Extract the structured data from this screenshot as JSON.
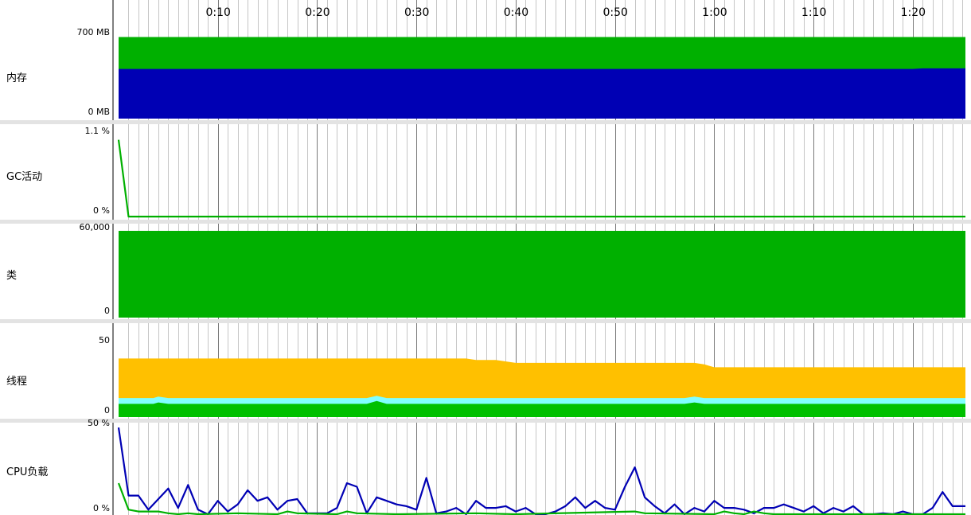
{
  "chart_data": {
    "type": "area",
    "time_axis": {
      "ticks": [
        {
          "t": 10,
          "label": "0:10"
        },
        {
          "t": 20,
          "label": "0:20"
        },
        {
          "t": 30,
          "label": "0:30"
        },
        {
          "t": 40,
          "label": "0:40"
        },
        {
          "t": 50,
          "label": "0:50"
        },
        {
          "t": 60,
          "label": "1:00"
        },
        {
          "t": 70,
          "label": "1:10"
        },
        {
          "t": 80,
          "label": "1:20"
        }
      ],
      "range_seconds": [
        0,
        85.3
      ],
      "minor_grid_seconds": 1
    },
    "panels": [
      {
        "id": "memory",
        "label": "内存",
        "ymax_label": "700 MB",
        "ymin_label": "0 MB",
        "ylim": [
          0,
          700
        ],
        "series": [
          {
            "color": "#00b000",
            "points": [
              [
                0,
                690
              ],
              [
                85.3,
                690
              ]
            ]
          },
          {
            "color": "#0000b4",
            "points": [
              [
                0,
                420
              ],
              [
                80,
                420
              ],
              [
                81,
                425
              ],
              [
                85.3,
                425
              ]
            ]
          }
        ]
      },
      {
        "id": "gc",
        "label": "GC活动",
        "ymax_label": "1.1 %",
        "ymin_label": "0 %",
        "ylim": [
          0,
          1.1
        ],
        "lines": [
          {
            "color": "#00b000",
            "points": [
              [
                0,
                1.03
              ],
              [
                1,
                0.01
              ],
              [
                85.3,
                0.01
              ]
            ]
          }
        ]
      },
      {
        "id": "classes",
        "label": "类",
        "ymax_label": "60,000",
        "ymin_label": "0",
        "ylim": [
          0,
          60000
        ],
        "series": [
          {
            "color": "#00b000",
            "points": [
              [
                0,
                60000
              ],
              [
                85.3,
                60000
              ]
            ]
          }
        ]
      },
      {
        "id": "threads",
        "label": "线程",
        "ymax_label": "50",
        "ymin_label": "0",
        "ylim": [
          0,
          50
        ],
        "series": [
          {
            "color": "#ffc000",
            "points": [
              [
                0,
                40
              ],
              [
                35,
                40
              ],
              [
                36,
                39
              ],
              [
                38,
                39
              ],
              [
                40,
                37
              ],
              [
                58,
                37
              ],
              [
                59,
                36
              ],
              [
                60,
                34
              ],
              [
                85.3,
                34
              ]
            ]
          },
          {
            "color": "#80ffff",
            "points": [
              [
                0,
                13
              ],
              [
                3.5,
                13
              ],
              [
                4,
                14
              ],
              [
                5,
                13
              ],
              [
                25,
                13
              ],
              [
                26,
                14.5
              ],
              [
                27,
                13
              ],
              [
                57,
                13
              ],
              [
                58,
                14
              ],
              [
                59,
                13
              ],
              [
                85.3,
                13
              ]
            ]
          },
          {
            "color": "#00c000",
            "points": [
              [
                0,
                9
              ],
              [
                3.5,
                9
              ],
              [
                4,
                10
              ],
              [
                5,
                9
              ],
              [
                25,
                9
              ],
              [
                26,
                11
              ],
              [
                27,
                9
              ],
              [
                57,
                9
              ],
              [
                58,
                10
              ],
              [
                59,
                9
              ],
              [
                85.3,
                9
              ]
            ]
          }
        ]
      },
      {
        "id": "cpu",
        "label": "CPU负载",
        "ymax_label": "50 %",
        "ymin_label": "0 %",
        "ylim": [
          0,
          50
        ],
        "lines": [
          {
            "color": "#0000b4",
            "points": [
              [
                0,
                49.5
              ],
              [
                1,
                11
              ],
              [
                2,
                11
              ],
              [
                3,
                3
              ],
              [
                4,
                9
              ],
              [
                5,
                15
              ],
              [
                6,
                4
              ],
              [
                7,
                17
              ],
              [
                8,
                3
              ],
              [
                9,
                0
              ],
              [
                10,
                8
              ],
              [
                11,
                2
              ],
              [
                12,
                6
              ],
              [
                13,
                14
              ],
              [
                14,
                8
              ],
              [
                15,
                10
              ],
              [
                16,
                3
              ],
              [
                17,
                8
              ],
              [
                18,
                9
              ],
              [
                19,
                1
              ],
              [
                20,
                1
              ],
              [
                21,
                1
              ],
              [
                22,
                4
              ],
              [
                23,
                18
              ],
              [
                24,
                16
              ],
              [
                25,
                1
              ],
              [
                26,
                10
              ],
              [
                27,
                8
              ],
              [
                28,
                6
              ],
              [
                29,
                5
              ],
              [
                30,
                3
              ],
              [
                31,
                21
              ],
              [
                32,
                1
              ],
              [
                33,
                2
              ],
              [
                34,
                4
              ],
              [
                35,
                0
              ],
              [
                36,
                8
              ],
              [
                37,
                4
              ],
              [
                38,
                4
              ],
              [
                39,
                5
              ],
              [
                40,
                2
              ],
              [
                41,
                4
              ],
              [
                42,
                0
              ],
              [
                43,
                0
              ],
              [
                44,
                2
              ],
              [
                45,
                5
              ],
              [
                46,
                10
              ],
              [
                47,
                4
              ],
              [
                48,
                8
              ],
              [
                49,
                4
              ],
              [
                50,
                3
              ],
              [
                51,
                16
              ],
              [
                52,
                27
              ],
              [
                53,
                10
              ],
              [
                54,
                5
              ],
              [
                55,
                1
              ],
              [
                56,
                6
              ],
              [
                57,
                0
              ],
              [
                58,
                4
              ],
              [
                59,
                2
              ],
              [
                60,
                8
              ],
              [
                61,
                4
              ],
              [
                62,
                4
              ],
              [
                63,
                3
              ],
              [
                64,
                1
              ],
              [
                65,
                4
              ],
              [
                66,
                4
              ],
              [
                67,
                6
              ],
              [
                68,
                4
              ],
              [
                69,
                2
              ],
              [
                70,
                5
              ],
              [
                71,
                1
              ],
              [
                72,
                4
              ],
              [
                73,
                2
              ],
              [
                74,
                5
              ],
              [
                75,
                0
              ],
              [
                76,
                0
              ],
              [
                77,
                1
              ],
              [
                78,
                0
              ],
              [
                79,
                2
              ],
              [
                80,
                0
              ],
              [
                81,
                0
              ],
              [
                82,
                4
              ],
              [
                83,
                13
              ],
              [
                84,
                5
              ],
              [
                85.3,
                5
              ]
            ]
          },
          {
            "color": "#00b000",
            "points": [
              [
                0,
                18
              ],
              [
                1,
                3
              ],
              [
                2,
                2
              ],
              [
                3,
                2
              ],
              [
                4,
                2
              ],
              [
                5,
                1
              ],
              [
                6,
                0
              ],
              [
                7,
                1
              ],
              [
                8,
                0
              ],
              [
                12,
                1
              ],
              [
                16,
                0
              ],
              [
                17,
                2
              ],
              [
                18,
                1
              ],
              [
                22,
                0
              ],
              [
                23,
                2
              ],
              [
                24,
                1
              ],
              [
                28,
                0
              ],
              [
                36,
                1
              ],
              [
                40,
                0
              ],
              [
                52,
                2
              ],
              [
                53,
                1
              ],
              [
                60,
                0
              ],
              [
                61,
                2
              ],
              [
                62,
                1
              ],
              [
                63,
                0
              ],
              [
                64,
                2
              ],
              [
                65,
                1
              ],
              [
                66,
                0
              ],
              [
                85.3,
                0
              ]
            ]
          }
        ]
      }
    ]
  },
  "colors": {
    "separator": "#e3e3e3",
    "grid_minor": "#c6c6c6",
    "grid_major": "#7a7a7a",
    "axis": "#000000"
  }
}
